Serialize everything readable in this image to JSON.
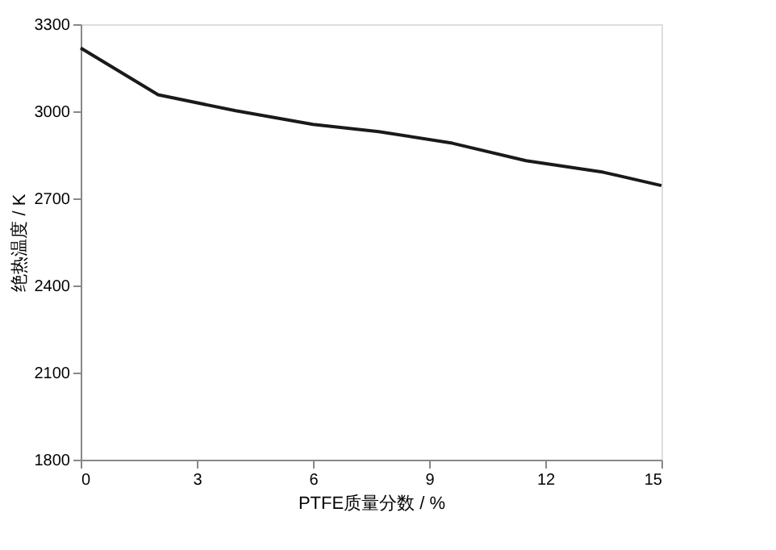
{
  "chart_data": {
    "type": "line",
    "xlabel": "PTFE质量分数 / %",
    "ylabel": "绝热温度 / K",
    "x": [
      0,
      2,
      4,
      6,
      7.7,
      9.6,
      11.5,
      13.5,
      15
    ],
    "series": [
      {
        "color": "#1a1a1a",
        "values": [
          3218,
          3057,
          3002,
          2955,
          2930,
          2890,
          2830,
          2790,
          2744
        ]
      }
    ],
    "xlim": [
      0,
      15
    ],
    "xticks": [
      0,
      3,
      6,
      9,
      12,
      15
    ],
    "ylim": [
      1800,
      3300
    ],
    "yticks": [
      1800,
      2100,
      2400,
      2700,
      3000,
      3300
    ],
    "grid": false,
    "legend": false,
    "marker": "none",
    "line_style": "solid"
  }
}
